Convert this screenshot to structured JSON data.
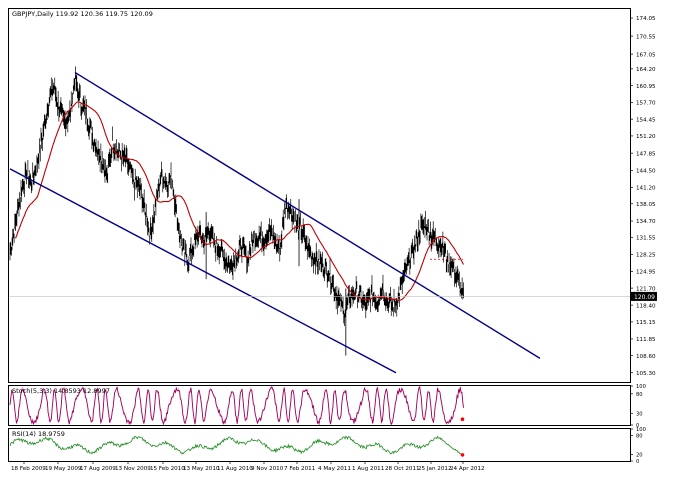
{
  "colors": {
    "background": "#ffffff",
    "border": "#000000",
    "price": "#000000",
    "moving_average": "#c00000",
    "channel": "#00008b",
    "stochastic": "#a0005a",
    "rsi": "#1e8c1e",
    "current_price_box": "#000000",
    "current_price_text": "#ffffff",
    "marker": "#ff0000"
  },
  "chart_data": [
    {
      "type": "line",
      "panel": "price",
      "header": "GBPJPY,Daily  119.92 120.36 119.75 120.09",
      "y_ticks": [
        "174.05",
        "170.55",
        "167.05",
        "164.20",
        "160.95",
        "157.70",
        "154.45",
        "151.20",
        "147.85",
        "144.50",
        "141.20",
        "138.05",
        "134.70",
        "131.55",
        "128.25",
        "124.95",
        "121.70",
        "118.40",
        "115.15",
        "111.85",
        "108.60",
        "105.30"
      ],
      "ylim": [
        103.5,
        175.8
      ],
      "current_price": "120.09",
      "x_labels": [
        "18 Feb 2009",
        "19 May 2009",
        "17 Aug 2009",
        "13 Nov 2009",
        "15 Feb 2010",
        "13 May 2010",
        "11 Aug 2010",
        "9 Nov 2010",
        "7 Feb 2011",
        "4 May 2011",
        "1 Aug 2011",
        "28 Oct 2011",
        "25 Jan 2012",
        "24 Apr 2012"
      ],
      "x_range": [
        "18 Feb 2009",
        "24 Apr 2012"
      ],
      "series": [
        {
          "role": "price",
          "values": [
            129,
            134,
            140,
            144,
            142,
            146,
            151,
            157,
            161,
            157,
            154,
            155,
            162,
            158,
            156,
            152,
            149,
            147,
            143,
            150,
            148,
            147,
            145,
            142,
            141,
            137,
            132,
            138,
            144,
            142,
            143,
            135,
            129,
            127,
            130,
            132,
            131,
            133,
            130,
            129,
            127,
            126,
            128,
            130,
            127,
            131,
            132,
            131,
            133,
            131,
            129,
            138,
            137,
            134,
            133,
            130,
            128,
            127,
            126,
            125,
            122,
            119,
            117,
            120,
            121,
            120,
            118,
            121,
            119,
            122,
            119,
            118,
            120,
            124,
            127,
            130,
            133,
            134,
            132,
            131,
            130,
            127,
            126,
            123,
            120
          ]
        },
        {
          "role": "moving_average",
          "values": [
            null,
            null,
            null,
            null,
            null,
            null,
            null,
            null,
            null,
            null,
            null,
            null,
            null,
            null,
            null,
            null,
            null,
            null,
            null,
            null,
            null,
            null,
            null,
            null,
            null,
            null,
            null,
            null,
            null,
            null,
            null,
            null,
            null,
            null,
            null,
            null,
            null,
            null,
            null,
            null,
            null,
            null,
            null,
            null,
            null,
            null,
            null,
            null,
            null,
            null,
            null,
            null,
            null,
            null,
            null,
            null,
            null,
            null,
            null,
            null,
            null,
            null,
            null,
            null,
            null,
            null,
            null,
            null,
            null,
            null,
            null,
            null,
            null,
            null,
            null,
            null,
            null,
            null,
            null,
            null,
            null,
            null,
            null,
            null,
            null
          ]
        }
      ],
      "channel_upper": [
        {
          "x": "19 May 2009",
          "y": 163.5
        },
        {
          "x": "24 Apr 2012",
          "y": 117.2
        }
      ],
      "channel_lower": [
        {
          "x": "18 Feb 2009",
          "y": 144.8
        },
        {
          "x": "28 Oct 2011",
          "y": 105.3
        }
      ],
      "dashed_level": 127.3
    },
    {
      "type": "line",
      "panel": "stochastic",
      "header": "Stoch(5,3,3) 14.8593 12.8997",
      "y_ticks": [
        "100",
        "80",
        "30",
        "0"
      ],
      "ylim": [
        0,
        100
      ],
      "last_value": 14.8593
    },
    {
      "type": "line",
      "panel": "rsi",
      "header": "RSI(14) 18.9759",
      "y_ticks": [
        "100",
        "80",
        "20",
        "0"
      ],
      "ylim": [
        0,
        100
      ],
      "last_value": 18.9759
    }
  ]
}
